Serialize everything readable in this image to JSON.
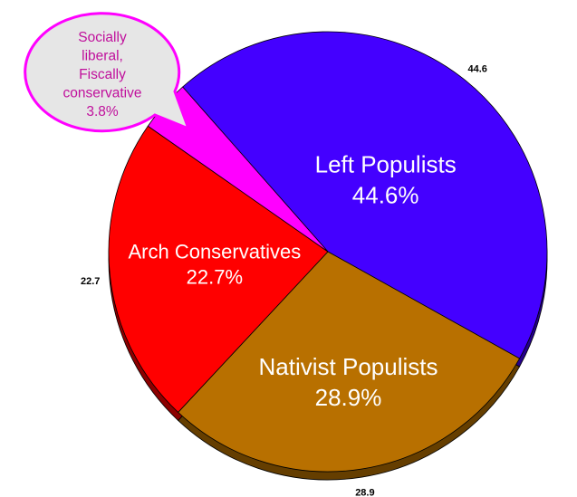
{
  "chart_data": {
    "type": "pie",
    "title": "",
    "slices": [
      {
        "name": "Left Populists",
        "pct_label": "44.6%",
        "value": 44.6,
        "value_label": "44.6",
        "color": "#4400ff",
        "label_color": "#ffffff"
      },
      {
        "name": "Nativist Populists",
        "pct_label": "28.9%",
        "value": 28.9,
        "value_label": "28.9",
        "color": "#b87000",
        "label_color": "#ffffff"
      },
      {
        "name": "Arch Conservatives",
        "pct_label": "22.7%",
        "value": 22.7,
        "value_label": "22.7",
        "color": "#ff0000",
        "label_color": "#ffffff"
      },
      {
        "name": "Socially liberal, Fiscally conservative",
        "pct_label": "3.8%",
        "value": 3.8,
        "value_label": "",
        "color": "#ff00ff",
        "label_color": "#c0109c"
      }
    ],
    "callout": {
      "lines": [
        "Socially",
        "liberal,",
        "Fiscally",
        "conservative",
        "3.8%"
      ],
      "fill": "#e6e6e6",
      "border": "#ff00ff"
    },
    "style": "3d"
  }
}
